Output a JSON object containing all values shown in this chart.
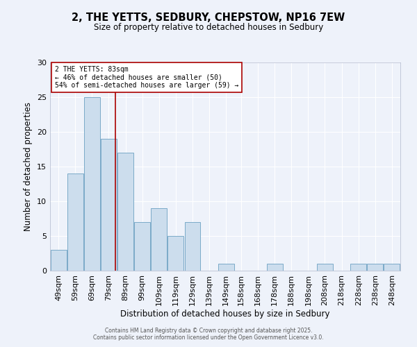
{
  "title": "2, THE YETTS, SEDBURY, CHEPSTOW, NP16 7EW",
  "subtitle": "Size of property relative to detached houses in Sedbury",
  "xlabel": "Distribution of detached houses by size in Sedbury",
  "ylabel": "Number of detached properties",
  "bar_color": "#ccdded",
  "bar_edge_color": "#7aaac8",
  "background_color": "#eef2fa",
  "grid_color": "#ffffff",
  "vline_x": 83,
  "vline_color": "#aa0000",
  "annotation_title": "2 THE YETTS: 83sqm",
  "annotation_line1": "← 46% of detached houses are smaller (50)",
  "annotation_line2": "54% of semi-detached houses are larger (59) →",
  "annotation_box_color": "#ffffff",
  "annotation_box_edge": "#aa0000",
  "bin_centers": [
    49,
    59,
    69,
    79,
    89,
    99,
    109,
    119,
    129,
    139,
    149,
    158,
    168,
    178,
    188,
    198,
    208,
    218,
    228,
    238,
    248
  ],
  "bin_width": 10,
  "counts": [
    3,
    14,
    25,
    19,
    17,
    7,
    9,
    5,
    7,
    0,
    1,
    0,
    0,
    1,
    0,
    0,
    1,
    0,
    1,
    1,
    1
  ],
  "xlim_left": 44,
  "xlim_right": 253,
  "ylim_top": 30,
  "yticks": [
    0,
    5,
    10,
    15,
    20,
    25,
    30
  ],
  "xtick_positions": [
    49,
    59,
    69,
    79,
    89,
    99,
    109,
    119,
    129,
    139,
    149,
    158,
    168,
    178,
    188,
    198,
    208,
    218,
    228,
    238,
    248
  ],
  "xtick_labels": [
    "49sqm",
    "59sqm",
    "69sqm",
    "79sqm",
    "89sqm",
    "99sqm",
    "109sqm",
    "119sqm",
    "129sqm",
    "139sqm",
    "149sqm",
    "158sqm",
    "168sqm",
    "178sqm",
    "188sqm",
    "198sqm",
    "208sqm",
    "218sqm",
    "228sqm",
    "238sqm",
    "248sqm"
  ],
  "footer1": "Contains HM Land Registry data © Crown copyright and database right 2025.",
  "footer2": "Contains public sector information licensed under the Open Government Licence v3.0."
}
